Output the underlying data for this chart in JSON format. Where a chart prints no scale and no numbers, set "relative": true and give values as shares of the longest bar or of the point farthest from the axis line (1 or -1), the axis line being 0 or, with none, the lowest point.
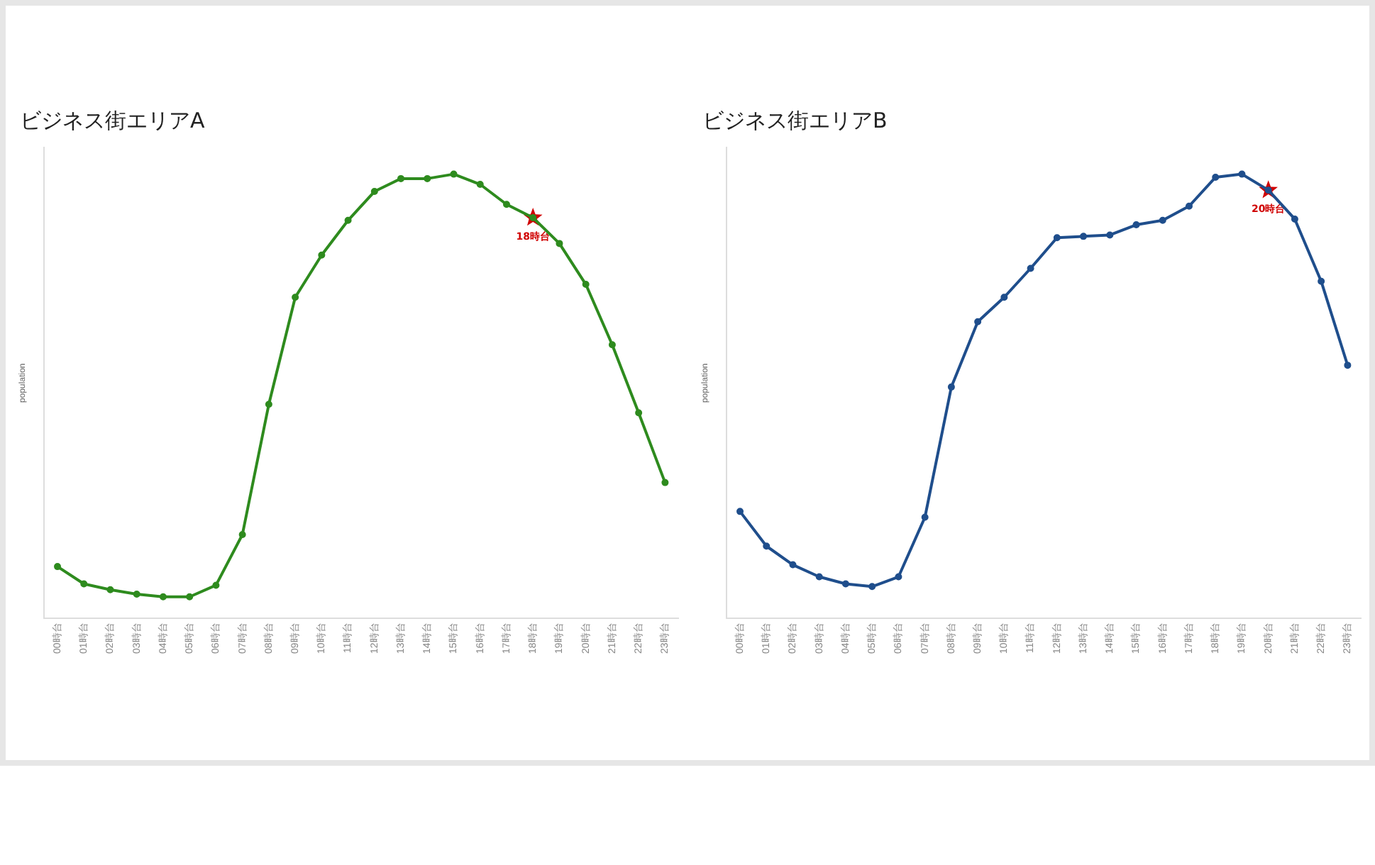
{
  "chart_data": [
    {
      "type": "line",
      "title": "ビジネス街エリアA",
      "ylabel": "population",
      "relative": true,
      "marker": "circle",
      "legend": false,
      "categories": [
        "00時台",
        "01時台",
        "02時台",
        "03時台",
        "04時台",
        "05時台",
        "06時台",
        "07時台",
        "08時台",
        "09時台",
        "10時台",
        "11時台",
        "12時台",
        "13時台",
        "14時台",
        "15時台",
        "16時台",
        "17時台",
        "18時台",
        "19時台",
        "20時台",
        "21時台",
        "22時台",
        "23時台"
      ],
      "series": [
        {
          "color": "#2e8b1e",
          "values": [
            0.117,
            0.078,
            0.065,
            0.055,
            0.049,
            0.049,
            0.075,
            0.189,
            0.482,
            0.723,
            0.818,
            0.896,
            0.961,
            0.99,
            0.99,
            1,
            0.977,
            0.932,
            0.902,
            0.844,
            0.752,
            0.616,
            0.463,
            0.306
          ]
        }
      ],
      "annotations": [
        {
          "text": "18時台",
          "x": "18時台",
          "y": 0.902
        }
      ]
    },
    {
      "type": "line",
      "title": "ビジネス街エリアB",
      "ylabel": "population",
      "relative": true,
      "marker": "circle",
      "legend": false,
      "categories": [
        "00時台",
        "01時台",
        "02時台",
        "03時台",
        "04時台",
        "05時台",
        "06時台",
        "07時台",
        "08時台",
        "09時台",
        "10時台",
        "11時台",
        "12時台",
        "13時台",
        "14時台",
        "15時台",
        "16時台",
        "17時台",
        "18時台",
        "19時台",
        "20時台",
        "21時台",
        "22時台",
        "23時台"
      ],
      "series": [
        {
          "color": "#1f4e8c",
          "values": [
            0.241,
            0.163,
            0.121,
            0.094,
            0.078,
            0.072,
            0.094,
            0.228,
            0.521,
            0.668,
            0.723,
            0.788,
            0.857,
            0.86,
            0.863,
            0.886,
            0.896,
            0.928,
            0.993,
            1,
            0.964,
            0.899,
            0.759,
            0.57
          ]
        }
      ],
      "annotations": [
        {
          "text": "20時台",
          "x": "20時台",
          "y": 0.964
        }
      ]
    }
  ]
}
